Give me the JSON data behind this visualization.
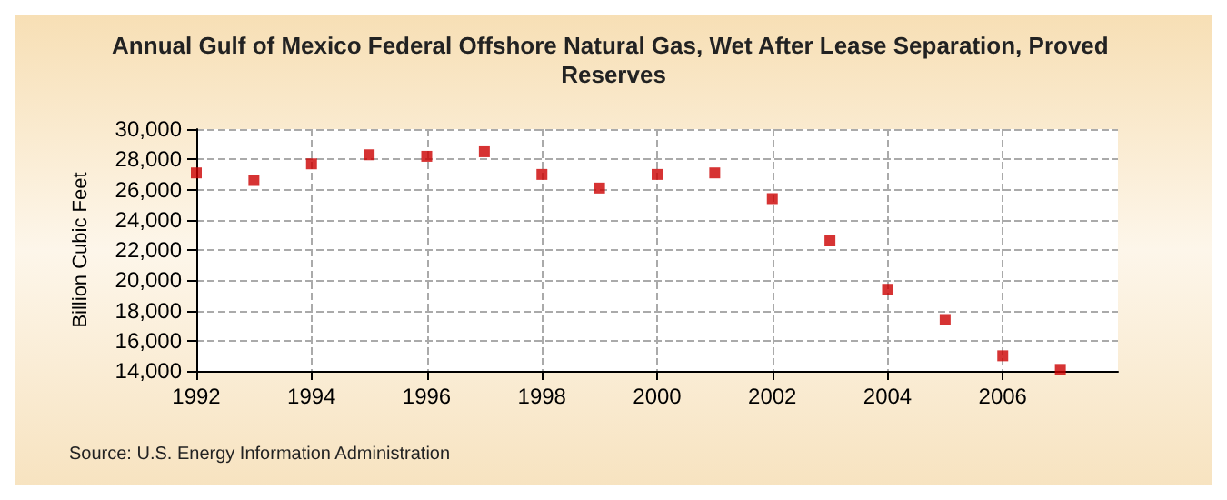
{
  "chart_data": {
    "type": "scatter",
    "title": "Annual Gulf of Mexico Federal Offshore Natural Gas, Wet After Lease Separation, Proved Reserves",
    "ylabel": "Billion Cubic Feet",
    "annotations": [
      "Source: U.S. Energy Information Administration"
    ],
    "x": [
      1992,
      1993,
      1994,
      1995,
      1996,
      1997,
      1998,
      1999,
      2000,
      2001,
      2002,
      2003,
      2004,
      2005,
      2006,
      2007
    ],
    "series": [
      {
        "color": "#cc0000",
        "values": [
          27100,
          26600,
          27700,
          28300,
          28200,
          28500,
          27000,
          26100,
          27000,
          27100,
          25400,
          22600,
          19400,
          17400,
          15000,
          14100
        ]
      }
    ],
    "xlim": [
      1992,
      2008
    ],
    "xticks": [
      1992,
      1994,
      1996,
      1998,
      2000,
      2002,
      2004,
      2006
    ],
    "ylim": [
      14000,
      30000
    ],
    "yticks": [
      {
        "value": 14000,
        "label": "14,000"
      },
      {
        "value": 16000,
        "label": "16,000"
      },
      {
        "value": 18000,
        "label": "18,000"
      },
      {
        "value": 20000,
        "label": "20,000"
      },
      {
        "value": 22000,
        "label": "22,000"
      },
      {
        "value": 24000,
        "label": "24,000"
      },
      {
        "value": 26000,
        "label": "26,000"
      },
      {
        "value": 28000,
        "label": "28,000"
      },
      {
        "value": 30000,
        "label": "30,000"
      }
    ],
    "grid": true,
    "marker": "square"
  }
}
